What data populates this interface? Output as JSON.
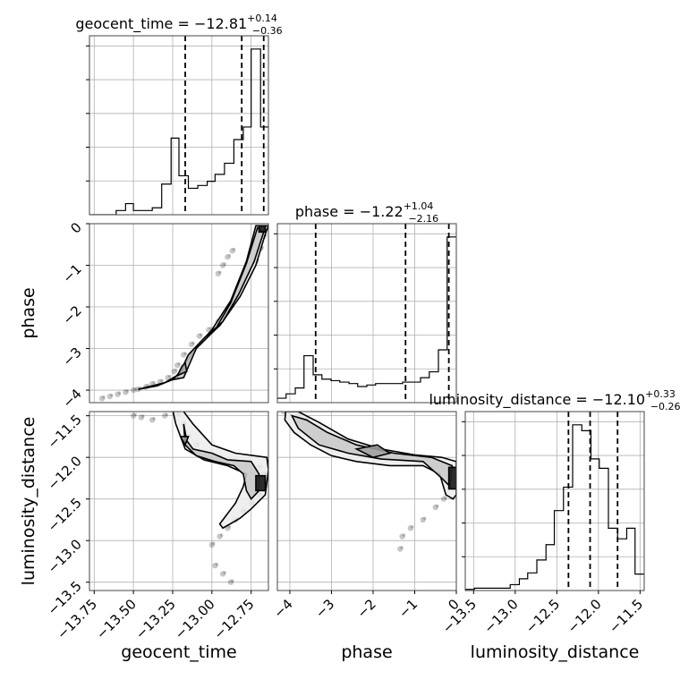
{
  "chart_data": {
    "type": "corner",
    "grid": true,
    "parameters": [
      {
        "name": "geocent_time",
        "axis_label": "geocent_time",
        "title": {
          "prefix": "geocent_time = ",
          "median": "−12.81",
          "plus": "+0.14",
          "minus": "−0.36"
        },
        "range": [
          -13.78,
          -12.64
        ],
        "ticks": [
          -13.75,
          -13.5,
          -13.25,
          -13.0,
          -12.75
        ],
        "tick_labels": [
          "−13.75",
          "−13.50",
          "−13.25",
          "−13.00",
          "−12.75"
        ],
        "quantile_lines": [
          -13.17,
          -12.81,
          -12.67
        ],
        "hist_edges": [
          -13.78,
          -13.73,
          -13.67,
          -13.61,
          -13.55,
          -13.5,
          -13.44,
          -13.38,
          -13.32,
          -13.26,
          -13.21,
          -13.15,
          -13.09,
          -13.03,
          -12.98,
          -12.92,
          -12.86,
          -12.8,
          -12.75,
          -12.69,
          -12.64
        ],
        "hist_counts": [
          0,
          0,
          0,
          0.3,
          0.8,
          0.3,
          0.3,
          0.5,
          2.2,
          5.5,
          2.8,
          1.9,
          2.1,
          2.4,
          2.9,
          3.7,
          5.4,
          6.3,
          11.9,
          6.3
        ]
      },
      {
        "name": "phase",
        "axis_label": "phase",
        "title": {
          "prefix": "phase = ",
          "median": "−1.22",
          "plus": "+1.04",
          "minus": "−2.16"
        },
        "range": [
          -4.3,
          0.0
        ],
        "ticks": [
          -4,
          -3,
          -2,
          -1,
          0
        ],
        "tick_labels": [
          "−4",
          "−3",
          "−2",
          "−1",
          "0"
        ],
        "quantile_lines": [
          -3.38,
          -1.22,
          -0.18
        ],
        "hist_edges": [
          -4.3,
          -4.09,
          -3.87,
          -3.66,
          -3.44,
          -3.23,
          -3.01,
          -2.8,
          -2.58,
          -2.37,
          -2.15,
          -1.94,
          -1.72,
          -1.51,
          -1.29,
          -1.08,
          -0.86,
          -0.65,
          -0.43,
          -0.22,
          0.0
        ],
        "hist_counts": [
          0.3,
          0.6,
          1.0,
          3.2,
          1.9,
          1.6,
          1.5,
          1.4,
          1.3,
          1.1,
          1.2,
          1.3,
          1.3,
          1.3,
          1.4,
          1.4,
          1.7,
          2.1,
          3.6,
          11.3
        ]
      },
      {
        "name": "luminosity_distance",
        "axis_label": "luminosity_distance",
        "title": {
          "prefix": "luminosity_distance = ",
          "median": "−12.10",
          "plus": "+0.33",
          "minus": "−0.26"
        },
        "range": [
          -13.6,
          -11.45
        ],
        "ticks": [
          -13.5,
          -13.0,
          -12.5,
          -12.0,
          -11.5
        ],
        "tick_labels": [
          "−13.5",
          "−13.0",
          "−12.5",
          "−12.0",
          "−11.5"
        ],
        "quantile_lines": [
          -12.36,
          -12.1,
          -11.77
        ],
        "hist_edges": [
          -13.6,
          -13.49,
          -13.38,
          -13.28,
          -13.17,
          -13.06,
          -12.95,
          -12.85,
          -12.74,
          -12.63,
          -12.53,
          -12.42,
          -12.31,
          -12.2,
          -12.09,
          -11.99,
          -11.88,
          -11.77,
          -11.66,
          -11.56,
          -11.45
        ],
        "hist_counts": [
          0.1,
          0.2,
          0.2,
          0.2,
          0.2,
          0.5,
          1.0,
          1.5,
          2.6,
          3.9,
          6.8,
          8.8,
          14.1,
          13.6,
          11.2,
          10.4,
          5.3,
          4.4,
          5.3,
          1.4
        ]
      }
    ],
    "panels_2d": [
      {
        "x": "geocent_time",
        "y": "phase",
        "scatter": [
          [
            -13.7,
            -4.2
          ],
          [
            -13.65,
            -4.15
          ],
          [
            -13.6,
            -4.1
          ],
          [
            -13.55,
            -4.05
          ],
          [
            -13.5,
            -4.0
          ],
          [
            -13.47,
            -3.98
          ],
          [
            -13.42,
            -3.92
          ],
          [
            -13.38,
            -3.85
          ],
          [
            -13.33,
            -3.8
          ],
          [
            -13.28,
            -3.7
          ],
          [
            -13.24,
            -3.55
          ],
          [
            -13.22,
            -3.4
          ],
          [
            -13.18,
            -3.15
          ],
          [
            -13.13,
            -2.9
          ],
          [
            -13.08,
            -2.7
          ],
          [
            -13.02,
            -2.55
          ],
          [
            -12.96,
            -2.35
          ],
          [
            -12.9,
            -2.1
          ],
          [
            -12.85,
            -1.8
          ],
          [
            -12.8,
            -1.5
          ],
          [
            -12.76,
            -1.2
          ],
          [
            -12.72,
            -0.9
          ],
          [
            -12.69,
            -0.6
          ],
          [
            -12.67,
            -0.3
          ],
          [
            -12.66,
            -0.1
          ],
          [
            -12.96,
            -1.2
          ],
          [
            -12.93,
            -1.0
          ],
          [
            -12.9,
            -0.8
          ],
          [
            -12.87,
            -0.65
          ]
        ],
        "contours": [
          [
            [
              -13.47,
              -3.98
            ],
            [
              -13.3,
              -3.82
            ],
            [
              -13.2,
              -3.6
            ],
            [
              -13.1,
              -2.95
            ],
            [
              -12.95,
              -2.45
            ],
            [
              -12.82,
              -1.75
            ],
            [
              -12.72,
              -1.0
            ],
            [
              -12.66,
              -0.25
            ],
            [
              -12.64,
              -0.05
            ],
            [
              -12.72,
              -0.05
            ],
            [
              -12.78,
              -0.9
            ],
            [
              -12.88,
              -1.85
            ],
            [
              -13.0,
              -2.55
            ],
            [
              -13.12,
              -3.05
            ],
            [
              -13.22,
              -3.7
            ],
            [
              -13.35,
              -3.9
            ],
            [
              -13.47,
              -3.98
            ]
          ],
          [
            [
              -13.25,
              -3.75
            ],
            [
              -13.2,
              -3.55
            ],
            [
              -13.15,
              -3.15
            ],
            [
              -13.05,
              -2.75
            ],
            [
              -12.93,
              -2.35
            ],
            [
              -12.83,
              -1.7
            ],
            [
              -12.73,
              -0.9
            ],
            [
              -12.67,
              -0.2
            ],
            [
              -12.71,
              -0.1
            ],
            [
              -12.78,
              -0.95
            ],
            [
              -12.88,
              -1.9
            ],
            [
              -12.98,
              -2.55
            ],
            [
              -13.1,
              -3.0
            ],
            [
              -13.18,
              -3.7
            ],
            [
              -13.25,
              -3.75
            ]
          ],
          [
            [
              -13.22,
              -3.65
            ],
            [
              -13.19,
              -3.42
            ],
            [
              -13.17,
              -3.35
            ],
            [
              -13.16,
              -3.55
            ],
            [
              -13.22,
              -3.65
            ]
          ],
          [
            [
              -12.7,
              -0.05
            ],
            [
              -12.66,
              -0.05
            ],
            [
              -12.66,
              -0.2
            ],
            [
              -12.7,
              -0.2
            ],
            [
              -12.7,
              -0.05
            ]
          ]
        ]
      },
      {
        "x": "geocent_time",
        "y": "luminosity_distance",
        "scatter": [
          [
            -13.5,
            -11.5
          ],
          [
            -13.45,
            -11.52
          ],
          [
            -13.38,
            -11.55
          ],
          [
            -13.3,
            -11.5
          ],
          [
            -13.22,
            -11.48
          ],
          [
            -13.18,
            -11.6
          ],
          [
            -13.15,
            -11.75
          ],
          [
            -13.1,
            -11.85
          ],
          [
            -13.05,
            -11.95
          ],
          [
            -12.95,
            -12.0
          ],
          [
            -12.85,
            -12.05
          ],
          [
            -12.78,
            -12.1
          ],
          [
            -12.7,
            -12.12
          ],
          [
            -12.67,
            -12.2
          ],
          [
            -12.68,
            -12.3
          ],
          [
            -12.7,
            -12.45
          ],
          [
            -12.75,
            -12.55
          ],
          [
            -12.8,
            -12.65
          ],
          [
            -12.85,
            -12.75
          ],
          [
            -12.9,
            -12.85
          ],
          [
            -12.95,
            -12.95
          ],
          [
            -13.0,
            -13.05
          ],
          [
            -12.98,
            -13.3
          ],
          [
            -12.93,
            -13.4
          ],
          [
            -12.88,
            -13.5
          ]
        ],
        "contours": [
          [
            [
              -13.2,
              -11.4
            ],
            [
              -13.12,
              -11.6
            ],
            [
              -13.0,
              -11.85
            ],
            [
              -12.85,
              -11.95
            ],
            [
              -12.65,
              -12.0
            ],
            [
              -12.64,
              -12.15
            ],
            [
              -12.66,
              -12.45
            ],
            [
              -12.75,
              -12.62
            ],
            [
              -12.82,
              -12.73
            ],
            [
              -12.93,
              -12.85
            ],
            [
              -12.95,
              -12.8
            ],
            [
              -12.85,
              -12.55
            ],
            [
              -12.8,
              -12.35
            ],
            [
              -12.78,
              -12.2
            ],
            [
              -12.9,
              -12.1
            ],
            [
              -13.05,
              -12.03
            ],
            [
              -13.17,
              -11.9
            ],
            [
              -13.23,
              -11.6
            ],
            [
              -13.25,
              -11.43
            ],
            [
              -13.2,
              -11.4
            ]
          ],
          [
            [
              -13.18,
              -11.6
            ],
            [
              -13.16,
              -11.8
            ],
            [
              -13.12,
              -11.9
            ],
            [
              -13.0,
              -11.95
            ],
            [
              -12.9,
              -12.03
            ],
            [
              -12.75,
              -12.05
            ],
            [
              -12.7,
              -12.2
            ],
            [
              -12.7,
              -12.4
            ],
            [
              -12.75,
              -12.5
            ],
            [
              -12.78,
              -12.4
            ],
            [
              -12.8,
              -12.2
            ],
            [
              -12.86,
              -12.1
            ],
            [
              -12.98,
              -12.05
            ],
            [
              -13.1,
              -11.98
            ],
            [
              -13.17,
              -11.85
            ],
            [
              -13.18,
              -11.6
            ]
          ],
          [
            [
              -13.2,
              -11.75
            ],
            [
              -13.17,
              -11.85
            ],
            [
              -13.15,
              -11.75
            ],
            [
              -13.2,
              -11.75
            ]
          ],
          [
            [
              -12.72,
              -12.22
            ],
            [
              -12.66,
              -12.22
            ],
            [
              -12.66,
              -12.4
            ],
            [
              -12.72,
              -12.4
            ],
            [
              -12.72,
              -12.22
            ]
          ]
        ]
      },
      {
        "x": "phase",
        "y": "luminosity_distance",
        "scatter": [
          [
            -4.15,
            -11.45
          ],
          [
            -4.0,
            -11.45
          ],
          [
            -3.8,
            -11.5
          ],
          [
            -3.6,
            -11.55
          ],
          [
            -3.3,
            -11.65
          ],
          [
            -3.0,
            -11.75
          ],
          [
            -2.6,
            -11.85
          ],
          [
            -2.2,
            -11.9
          ],
          [
            -1.8,
            -11.95
          ],
          [
            -1.3,
            -12.0
          ],
          [
            -0.9,
            -12.05
          ],
          [
            -0.5,
            -12.1
          ],
          [
            -0.15,
            -12.2
          ],
          [
            -0.1,
            -12.35
          ],
          [
            -0.3,
            -12.5
          ],
          [
            -0.5,
            -12.6
          ],
          [
            -0.8,
            -12.75
          ],
          [
            -1.1,
            -12.85
          ],
          [
            -1.3,
            -12.95
          ],
          [
            -1.35,
            -13.1
          ]
        ],
        "contours": [
          [
            [
              -4.1,
              -11.45
            ],
            [
              -3.8,
              -11.45
            ],
            [
              -3.3,
              -11.58
            ],
            [
              -2.6,
              -11.78
            ],
            [
              -1.8,
              -11.9
            ],
            [
              -1.0,
              -11.97
            ],
            [
              -0.35,
              -12.0
            ],
            [
              0.0,
              -12.05
            ],
            [
              0.0,
              -12.45
            ],
            [
              -0.08,
              -12.5
            ],
            [
              -0.25,
              -12.45
            ],
            [
              -0.4,
              -12.2
            ],
            [
              -0.8,
              -12.1
            ],
            [
              -1.6,
              -12.1
            ],
            [
              -2.4,
              -12.05
            ],
            [
              -3.0,
              -11.98
            ],
            [
              -3.5,
              -11.85
            ],
            [
              -3.9,
              -11.7
            ],
            [
              -4.12,
              -11.55
            ],
            [
              -4.1,
              -11.45
            ]
          ],
          [
            [
              -3.95,
              -11.5
            ],
            [
              -3.6,
              -11.55
            ],
            [
              -3.1,
              -11.7
            ],
            [
              -2.4,
              -11.85
            ],
            [
              -1.5,
              -11.95
            ],
            [
              -0.6,
              -12.0
            ],
            [
              -0.1,
              -12.1
            ],
            [
              -0.15,
              -12.35
            ],
            [
              -0.35,
              -12.25
            ],
            [
              -0.8,
              -12.05
            ],
            [
              -1.8,
              -12.02
            ],
            [
              -2.6,
              -11.95
            ],
            [
              -3.3,
              -11.85
            ],
            [
              -3.8,
              -11.65
            ],
            [
              -3.95,
              -11.5
            ]
          ],
          [
            [
              -2.4,
              -11.9
            ],
            [
              -1.9,
              -11.85
            ],
            [
              -1.6,
              -11.95
            ],
            [
              -2.0,
              -12.0
            ],
            [
              -2.4,
              -11.9
            ]
          ],
          [
            [
              -0.18,
              -12.12
            ],
            [
              0.0,
              -12.12
            ],
            [
              0.0,
              -12.38
            ],
            [
              -0.18,
              -12.38
            ],
            [
              -0.18,
              -12.12
            ]
          ]
        ]
      }
    ]
  }
}
